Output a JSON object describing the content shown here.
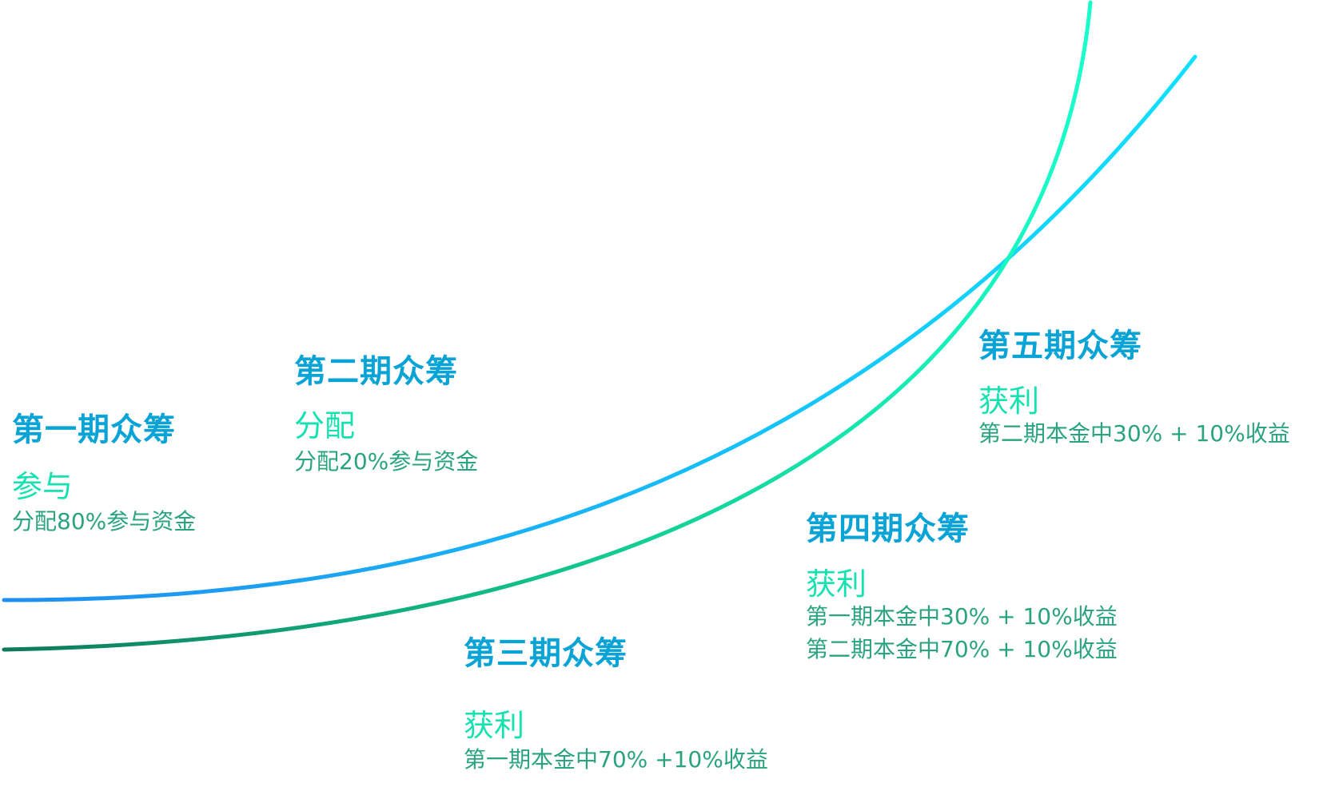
{
  "colors": {
    "title": "#0aa3d6",
    "action": "#15e2b0",
    "detail": "#2aa37f",
    "curve_blue_start": "#1f8ef0",
    "curve_blue_end": "#10e0ff",
    "curve_green_start": "#0d7a5b",
    "curve_green_end": "#19ffcc"
  },
  "phases": [
    {
      "title": "第一期众筹",
      "action": "参与",
      "details": [
        "分配80%参与资金"
      ]
    },
    {
      "title": "第二期众筹",
      "action": "分配",
      "details": [
        "分配20%参与资金"
      ]
    },
    {
      "title": "第三期众筹",
      "action": "获利",
      "details": [
        "第一期本金中70% +10%收益"
      ]
    },
    {
      "title": "第四期众筹",
      "action": "获利",
      "details": [
        "第一期本金中30% + 10%收益",
        "第二期本金中70% + 10%收益"
      ]
    },
    {
      "title": "第五期众筹",
      "action": "获利",
      "details": [
        "第二期本金中30% + 10%收益"
      ]
    }
  ]
}
